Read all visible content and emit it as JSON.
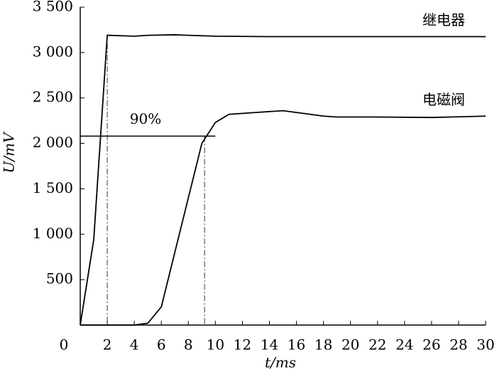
{
  "chart_data": {
    "type": "line",
    "x_label": "t/ms",
    "y_label": "U/mV",
    "xlim": [
      0,
      30
    ],
    "ylim": [
      0,
      3500
    ],
    "xticks": [
      0,
      2,
      4,
      6,
      8,
      10,
      12,
      14,
      16,
      18,
      20,
      22,
      24,
      26,
      28,
      30
    ],
    "yticks": [
      500,
      {
        "value": 1000,
        "label": "1 000"
      },
      {
        "value": 1500,
        "label": "1 500"
      },
      {
        "value": 2000,
        "label": "2 000"
      },
      {
        "value": 2500,
        "label": "2 500"
      },
      {
        "value": 3000,
        "label": "3 000"
      },
      {
        "value": 3500,
        "label": "3 500"
      }
    ],
    "series": [
      {
        "name": "继电器",
        "color": "#000000",
        "x": [
          0,
          1,
          2,
          4,
          5,
          7,
          10,
          14,
          30
        ],
        "values": [
          0,
          940,
          3190,
          3180,
          3190,
          3195,
          3180,
          3175,
          3175
        ]
      },
      {
        "name": "电磁阀",
        "color": "#000000",
        "x": [
          0,
          4,
          5,
          6,
          7,
          8,
          9,
          10,
          11,
          13,
          15,
          16,
          18,
          19,
          22,
          26,
          30
        ],
        "values": [
          0,
          0,
          20,
          200,
          800,
          1400,
          2000,
          2230,
          2320,
          2340,
          2360,
          2340,
          2300,
          2290,
          2290,
          2285,
          2300
        ]
      }
    ],
    "threshold": {
      "label": "90%",
      "value": 2080,
      "x_end": 10
    },
    "reference_x": [
      2,
      9.2
    ]
  }
}
